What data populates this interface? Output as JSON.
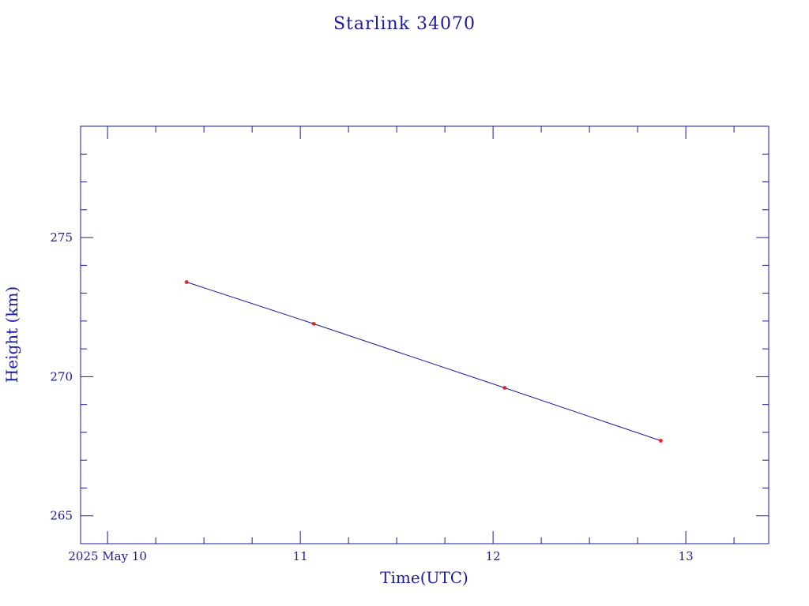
{
  "chart_data": {
    "type": "line",
    "title": "Starlink 34070",
    "xlabel": "Time(UTC)",
    "ylabel": "Height (km)",
    "x_tick_labels": [
      "2025 May 10",
      "11",
      "12",
      "13"
    ],
    "x_ticks": [
      10,
      11,
      12,
      13
    ],
    "y_tick_labels": [
      "265",
      "270",
      "275"
    ],
    "y_ticks": [
      265,
      270,
      275
    ],
    "xlim": [
      9.86,
      13.43
    ],
    "ylim": [
      264,
      279
    ],
    "x_unit": "days (May 2025)",
    "series": [
      {
        "x": [
          10.41,
          11.07,
          12.06,
          12.87
        ],
        "y": [
          273.4,
          271.9,
          269.6,
          267.7
        ]
      }
    ],
    "grid": false,
    "legend": "none",
    "colors": {
      "axes": "#1a1aa0",
      "line": "#1a1aa0",
      "marker": "#e02020",
      "text": "#1a1aa0"
    }
  }
}
